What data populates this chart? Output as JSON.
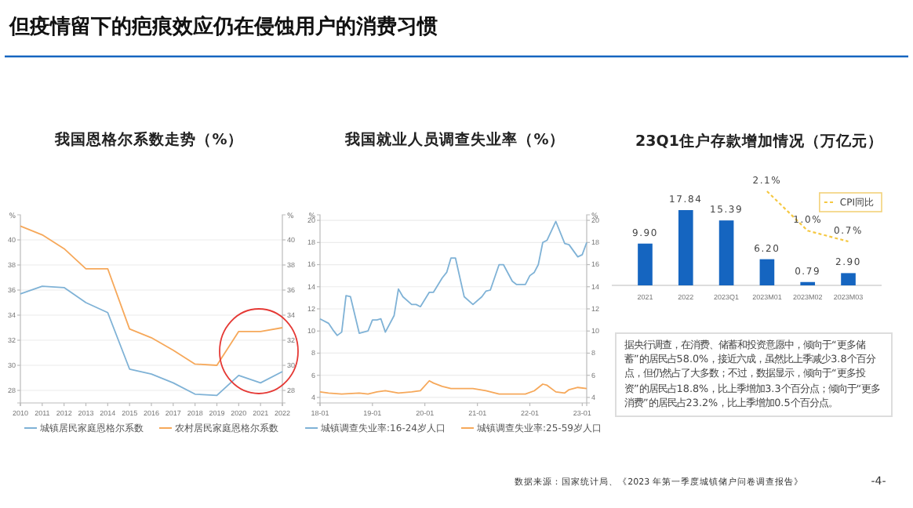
{
  "chart_data": [
    {
      "type": "line",
      "title": "我国恩格尔系数走势（%）",
      "ylabel": "%",
      "y2label": "%",
      "categories": [
        "2010",
        "2011",
        "2012",
        "2013",
        "2014",
        "2015",
        "2016",
        "2017",
        "2018",
        "2019",
        "2020",
        "2021",
        "2022"
      ],
      "series": [
        {
          "name": "城镇居民家庭恩格尔系数",
          "color": "#7fb2d6",
          "values": [
            35.7,
            36.3,
            36.2,
            35.0,
            34.2,
            29.7,
            29.3,
            28.6,
            27.7,
            27.6,
            29.2,
            28.6,
            29.5
          ]
        },
        {
          "name": "农村居民家庭恩格尔系数",
          "color": "#f6a85a",
          "values": [
            41.1,
            40.4,
            39.3,
            37.7,
            37.7,
            32.9,
            32.2,
            31.2,
            30.1,
            30.0,
            32.7,
            32.7,
            33.0
          ]
        }
      ],
      "ylim": [
        27,
        42
      ],
      "yticks": [
        28,
        30,
        32,
        34,
        36,
        38,
        40
      ],
      "y2lim": [
        27,
        42
      ],
      "y2ticks": [
        28,
        30,
        32,
        34,
        36,
        38,
        40
      ],
      "grid": "y",
      "legend": "bottom"
    },
    {
      "type": "line",
      "title": "我国就业人员调查失业率（%）",
      "ylabel": "%",
      "y2label": "%",
      "series": [
        {
          "name": "城镇调查失业率:16-24岁人口",
          "color": "#7fb2d6",
          "x": [
            "2018-01",
            "2018-03",
            "2018-04",
            "2018-05",
            "2018-06",
            "2018-07",
            "2018-08",
            "2018-10",
            "2018-12",
            "2019-01",
            "2019-02",
            "2019-03",
            "2019-04",
            "2019-06",
            "2019-07",
            "2019-08",
            "2019-10",
            "2019-11",
            "2019-12",
            "2020-02",
            "2020-03",
            "2020-05",
            "2020-06",
            "2020-07",
            "2020-08",
            "2020-10",
            "2020-12",
            "2021-02",
            "2021-03",
            "2021-04",
            "2021-06",
            "2021-07",
            "2021-09",
            "2021-10",
            "2021-12",
            "2022-01",
            "2022-02",
            "2022-03",
            "2022-04",
            "2022-05",
            "2022-07",
            "2022-09",
            "2022-10",
            "2022-12",
            "2023-01",
            "2023-02"
          ],
          "values": [
            11.1,
            10.7,
            10.1,
            9.6,
            9.9,
            13.2,
            13.1,
            9.8,
            10.0,
            11.0,
            11.0,
            11.1,
            9.9,
            11.4,
            13.8,
            13.1,
            12.4,
            12.4,
            12.2,
            13.5,
            13.5,
            14.8,
            15.3,
            16.6,
            16.6,
            13.1,
            12.4,
            13.1,
            13.6,
            13.7,
            16.0,
            16.0,
            14.5,
            14.2,
            14.2,
            15.0,
            15.3,
            16.0,
            18.0,
            18.2,
            19.9,
            17.9,
            17.8,
            16.7,
            16.9,
            18.0
          ]
        },
        {
          "name": "城镇调查失业率:25-59岁人口",
          "color": "#f6a85a",
          "x": [
            "2018-01",
            "2018-03",
            "2018-06",
            "2018-10",
            "2018-12",
            "2019-02",
            "2019-04",
            "2019-07",
            "2019-10",
            "2019-12",
            "2020-02",
            "2020-03",
            "2020-05",
            "2020-07",
            "2020-09",
            "2020-12",
            "2021-03",
            "2021-06",
            "2021-09",
            "2021-12",
            "2022-02",
            "2022-04",
            "2022-05",
            "2022-07",
            "2022-09",
            "2022-10",
            "2022-12",
            "2023-02"
          ],
          "values": [
            4.5,
            4.4,
            4.3,
            4.4,
            4.3,
            4.5,
            4.6,
            4.4,
            4.5,
            4.6,
            5.5,
            5.3,
            5.0,
            4.8,
            4.8,
            4.8,
            4.6,
            4.3,
            4.3,
            4.3,
            4.6,
            5.2,
            5.1,
            4.5,
            4.4,
            4.7,
            4.9,
            4.8
          ]
        }
      ],
      "xlim": [
        "2018-01",
        "2023-02"
      ],
      "xticks": [
        {
          "value": "2018-01",
          "label": "18-01"
        },
        {
          "value": "2019-01",
          "label": "19-01"
        },
        {
          "value": "2020-01",
          "label": "20-01"
        },
        {
          "value": "2021-01",
          "label": "21-01"
        },
        {
          "value": "2022-01",
          "label": "22-01"
        },
        {
          "value": "2023-01",
          "label": "23-01"
        }
      ],
      "ylim": [
        3.5,
        20.5
      ],
      "yticks": [
        4,
        6,
        8,
        10,
        12,
        14,
        16,
        18,
        20
      ],
      "y2lim": [
        3.5,
        20.5
      ],
      "y2ticks": [
        4,
        6,
        8,
        10,
        12,
        14,
        16,
        18,
        20
      ],
      "grid": "y",
      "legend": "bottom"
    },
    {
      "type": "bar",
      "title": "23Q1住户存款增加情况（万亿元）",
      "categories": [
        "2021",
        "2022",
        "2023Q1",
        "2023M01",
        "2023M02",
        "2023M03"
      ],
      "series": [
        {
          "color": "#1565c0",
          "values": [
            9.9,
            17.84,
            15.39,
            6.2,
            0.79,
            2.9
          ],
          "value_labels": [
            "9.90",
            "17.84",
            "15.39",
            "6.20",
            "0.79",
            "2.90"
          ]
        },
        {
          "name": "CPI同比",
          "type": "line",
          "axis": "y2",
          "color": "#f5c842",
          "line_style": "dashed",
          "values": [
            null,
            null,
            null,
            2.1,
            1.0,
            0.7
          ],
          "value_labels": [
            null,
            null,
            null,
            "2.1%",
            "1.0%",
            "0.7%"
          ]
        }
      ],
      "tick_labels": "x",
      "legend": "top right",
      "annotations": [
        "据央行调查，在消费、储蓄和投资意愿中，倾向于“更多储蓄”的居民占58.0%，接近六成，虽然比上季减少3.8个百分点，但仍然占了大多数；不过，数据显示，倾向于“更多投资”的居民占18.8%，比上季增加3.3个百分点；倾向于“更多消费”的居民占23.2%，比上季增加0.5个百分点。"
      ]
    },
    {
      "type": "other",
      "title": "但疫情留下的疤痕效应仍在侵蚀用户的消费习惯",
      "annotations": [
        "数据来源：国家统计局、《2023 年第一季度城镇储户问卷调查报告》",
        "-4-"
      ]
    }
  ]
}
